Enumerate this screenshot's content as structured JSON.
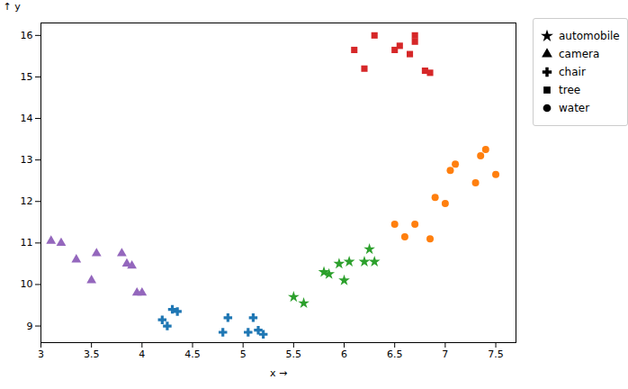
{
  "chart_data": {
    "type": "scatter",
    "xlabel": "x",
    "ylabel": "y",
    "xlim": [
      3.0,
      7.7
    ],
    "ylim": [
      8.6,
      16.3
    ],
    "xticks": [
      3,
      3.5,
      4,
      4.5,
      5,
      5.5,
      6,
      6.5,
      7,
      7.5
    ],
    "yticks": [
      9,
      10,
      11,
      12,
      13,
      14,
      15,
      16
    ],
    "legend": "upper right",
    "series": [
      {
        "name": "automobile",
        "color": "#2ca02c",
        "marker": "star",
        "x": [
          5.5,
          5.6,
          5.8,
          5.85,
          5.95,
          6.0,
          6.05,
          6.2,
          6.25,
          6.3
        ],
        "values": [
          9.7,
          9.55,
          10.3,
          10.25,
          10.5,
          10.1,
          10.55,
          10.55,
          10.85,
          10.55
        ]
      },
      {
        "name": "camera",
        "color": "#9467bd",
        "marker": "triangle",
        "x": [
          3.1,
          3.2,
          3.35,
          3.5,
          3.55,
          3.8,
          3.85,
          3.9,
          3.95,
          4.0
        ],
        "values": [
          11.05,
          11.0,
          10.6,
          10.1,
          10.75,
          10.75,
          10.5,
          10.45,
          9.8,
          9.8
        ]
      },
      {
        "name": "chair",
        "color": "#1f77b4",
        "marker": "cross",
        "x": [
          4.2,
          4.25,
          4.3,
          4.35,
          4.8,
          4.85,
          5.05,
          5.1,
          5.15,
          5.2
        ],
        "values": [
          9.15,
          9.0,
          9.4,
          9.35,
          8.85,
          9.2,
          8.85,
          9.2,
          8.9,
          8.8
        ]
      },
      {
        "name": "tree",
        "color": "#d62728",
        "marker": "square",
        "x": [
          6.1,
          6.2,
          6.3,
          6.5,
          6.55,
          6.65,
          6.7,
          6.7,
          6.8,
          6.85
        ],
        "values": [
          15.65,
          15.2,
          16.0,
          15.65,
          15.75,
          15.55,
          15.85,
          16.0,
          15.15,
          15.1
        ]
      },
      {
        "name": "water",
        "color": "#ff7f0e",
        "marker": "circle",
        "x": [
          6.5,
          6.6,
          6.7,
          6.85,
          6.9,
          7.0,
          7.05,
          7.1,
          7.3,
          7.35,
          7.4,
          7.5
        ],
        "values": [
          11.45,
          11.15,
          11.45,
          11.1,
          12.1,
          11.95,
          12.75,
          12.9,
          12.45,
          13.1,
          13.25,
          12.65
        ]
      }
    ]
  }
}
